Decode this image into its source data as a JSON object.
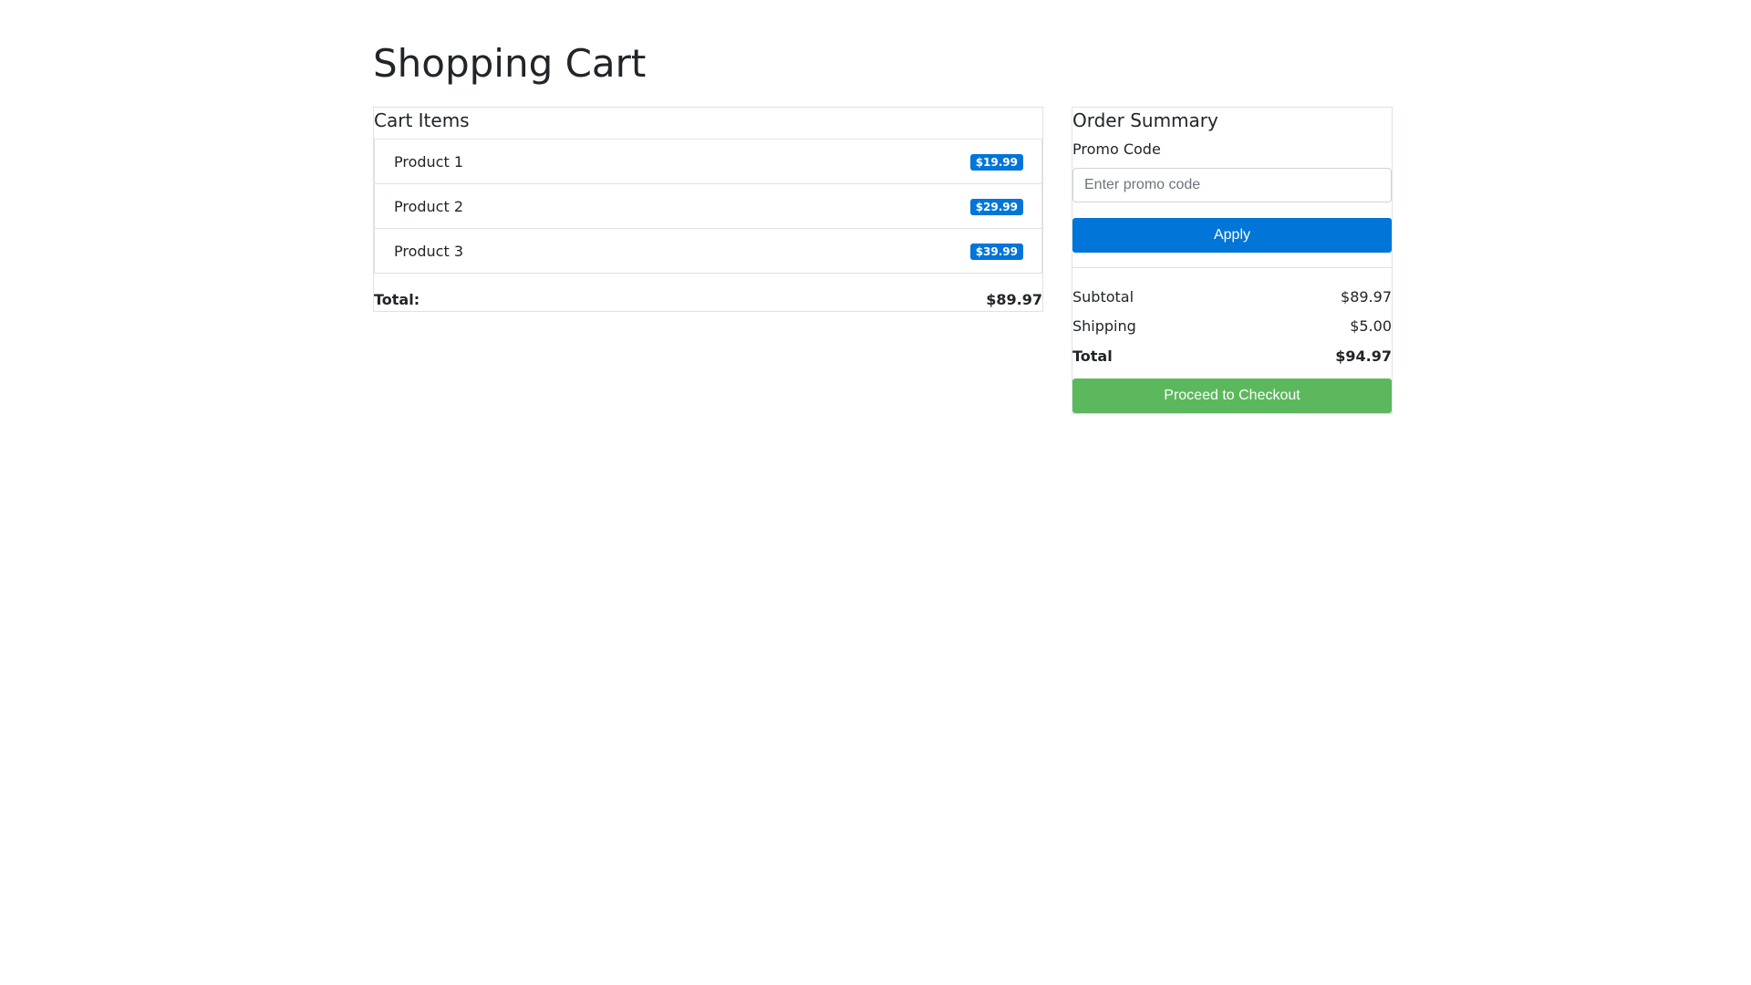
{
  "page": {
    "title": "Shopping Cart"
  },
  "cart": {
    "heading": "Cart Items",
    "items": [
      {
        "name": "Product 1",
        "price": "$19.99"
      },
      {
        "name": "Product 2",
        "price": "$29.99"
      },
      {
        "name": "Product 3",
        "price": "$39.99"
      }
    ],
    "total_label": "Total:",
    "total_value": "$89.97"
  },
  "summary": {
    "heading": "Order Summary",
    "promo_label": "Promo Code",
    "promo_placeholder": "Enter promo code",
    "promo_value": "",
    "apply_label": "Apply",
    "subtotal_label": "Subtotal",
    "subtotal_value": "$89.97",
    "shipping_label": "Shipping",
    "shipping_value": "$5.00",
    "total_label": "Total",
    "total_value": "$94.97",
    "checkout_label": "Proceed to Checkout"
  },
  "colors": {
    "primary": "#0275d8",
    "success": "#5cb85c",
    "badge": "#0275d8",
    "text": "#212529",
    "border": "#dee2e6"
  }
}
